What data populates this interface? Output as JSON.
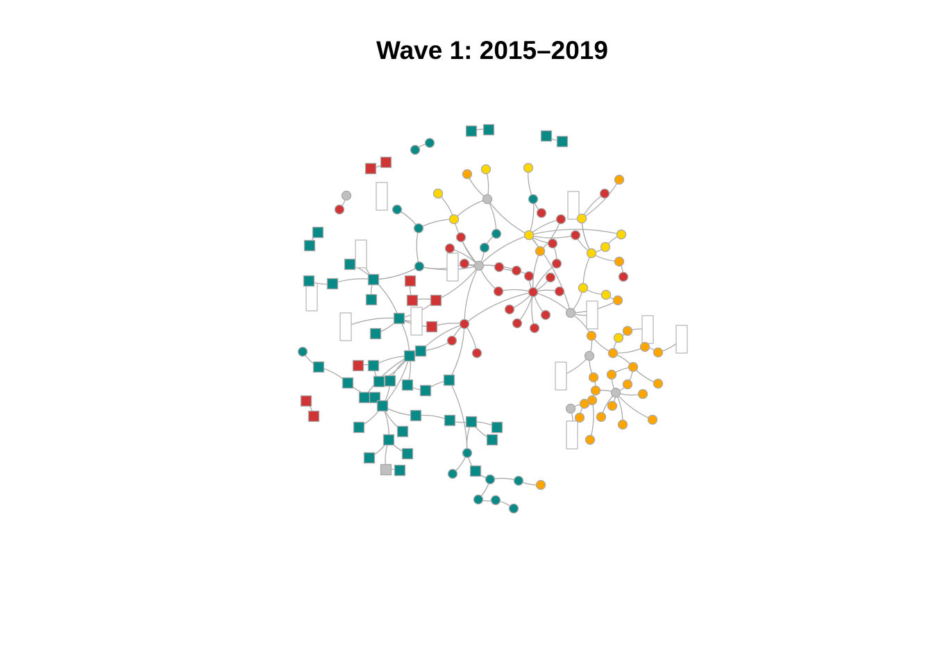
{
  "title": "Wave 1: 2015–2019",
  "colors": {
    "teal": "#0a8a86",
    "red": "#d03434",
    "yellow": "#ffd700",
    "orange": "#ffa500",
    "gray": "#c0c0c0",
    "edge": "#a9a9a9",
    "border": "#a8a8a8"
  }
}
